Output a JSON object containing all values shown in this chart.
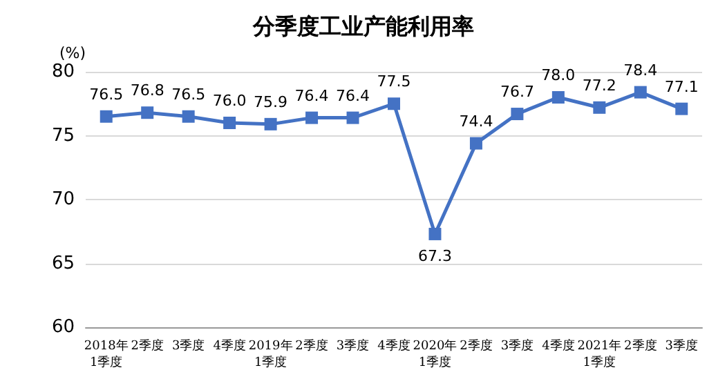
{
  "chart_data": {
    "type": "line",
    "title": "分季度工业产能利用率",
    "ylabel": "(%)",
    "categories": [
      "2018年\n1季度",
      "2季度",
      "3季度",
      "4季度",
      "2019年\n1季度",
      "2季度",
      "3季度",
      "4季度",
      "2020年\n1季度",
      "2季度",
      "3季度",
      "4季度",
      "2021年\n1季度",
      "2季度",
      "3季度"
    ],
    "series": [
      {
        "color": "#4472c4",
        "values": [
          76.5,
          76.8,
          76.5,
          76.0,
          75.9,
          76.4,
          76.4,
          77.5,
          67.3,
          74.4,
          76.7,
          78.0,
          77.2,
          78.4,
          77.1
        ],
        "value_labels": [
          "76.5",
          "76.8",
          "76.5",
          "76.0",
          "75.9",
          "76.4",
          "76.4",
          "77.5",
          "67.3",
          "74.4",
          "76.7",
          "78.0",
          "77.2",
          "78.4",
          "77.1"
        ]
      }
    ],
    "ylim": [
      60,
      80
    ],
    "yticks": [
      60,
      65,
      70,
      75,
      80
    ],
    "grid": "y",
    "marker": "square",
    "line_style": "solid"
  }
}
